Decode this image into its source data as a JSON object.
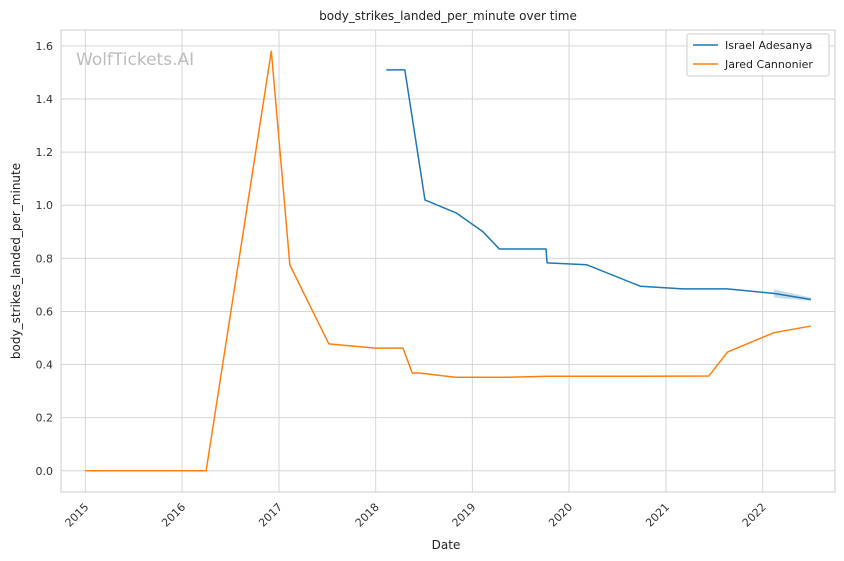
{
  "chart_data": {
    "type": "line",
    "title": "body_strikes_landed_per_minute over time",
    "xlabel": "Date",
    "ylabel": "body_strikes_landed_per_minute",
    "x_ticks": [
      "2015",
      "2016",
      "2017",
      "2018",
      "2019",
      "2020",
      "2021",
      "2022"
    ],
    "y_ticks": [
      "0.0",
      "0.2",
      "0.4",
      "0.6",
      "0.8",
      "1.0",
      "1.2",
      "1.4",
      "1.6"
    ],
    "xlim": [
      "2014-10-01",
      "2022-10-01"
    ],
    "ylim": [
      -0.08,
      1.66
    ],
    "grid": true,
    "legend_position": "top-right",
    "watermark": "WolfTickets.AI",
    "series": [
      {
        "name": "Israel Adesanya",
        "color": "#1f77b4",
        "x": [
          "2018-02-10",
          "2018-04-21",
          "2018-07-06",
          "2018-11-03",
          "2019-02-10",
          "2019-04-13",
          "2019-10-06",
          "2019-10-10",
          "2020-03-07",
          "2020-09-26",
          "2021-03-06",
          "2021-06-12",
          "2021-08-20",
          "2022-02-12",
          "2022-07-02"
        ],
        "values": [
          1.51,
          1.51,
          1.02,
          0.97,
          0.9,
          0.835,
          0.835,
          0.783,
          0.776,
          0.695,
          0.685,
          0.685,
          0.685,
          0.668,
          0.645
        ],
        "band": {
          "x": [
            "2022-02-12",
            "2022-07-02"
          ],
          "lower": [
            0.652,
            0.64
          ],
          "upper": [
            0.684,
            0.652
          ]
        }
      },
      {
        "name": "Jared Cannonier",
        "color": "#ff7f0e",
        "x": [
          "2015-01-01",
          "2016-04-01",
          "2016-12-03",
          "2017-02-11",
          "2017-07-08",
          "2017-12-30",
          "2018-04-14",
          "2018-05-19",
          "2018-06-15",
          "2018-10-27",
          "2019-05-04",
          "2019-10-12",
          "2020-09-26",
          "2021-06-12",
          "2021-08-21",
          "2022-02-12",
          "2022-07-02"
        ],
        "values": [
          0.0,
          0.0,
          1.58,
          0.775,
          0.478,
          0.462,
          0.462,
          0.368,
          0.368,
          0.352,
          0.352,
          0.356,
          0.356,
          0.357,
          0.447,
          0.52,
          0.545
        ]
      }
    ]
  }
}
